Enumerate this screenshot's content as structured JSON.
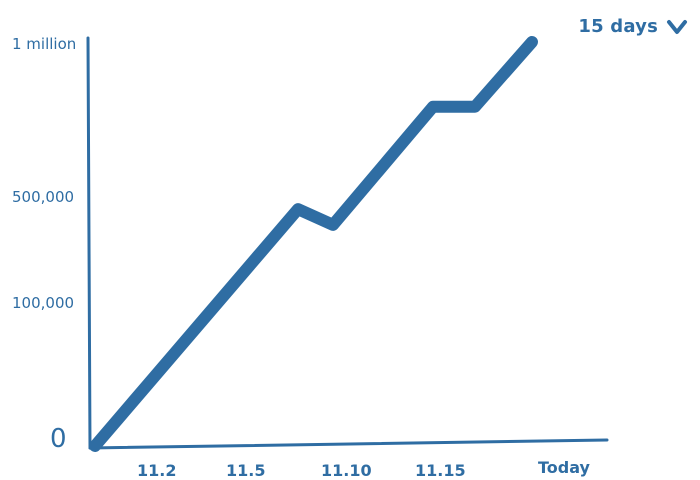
{
  "range_selector": {
    "label": "15 days",
    "icon": "chevron-down-icon"
  },
  "colors": {
    "accent": "#2f6da3",
    "line": "#2f6da3",
    "axis": "#2f6da3",
    "text": "#2f6da3"
  },
  "chart_data": {
    "type": "line",
    "title": "",
    "xlabel": "",
    "ylabel": "",
    "x_ticks": [
      "11.2",
      "11.5",
      "11.10",
      "11.15",
      "Today"
    ],
    "y_ticks": [
      "0",
      "100,000",
      "500,000",
      "1 million"
    ],
    "y_scale": "irregular (labels are unevenly spaced)",
    "series": [
      {
        "values": [
          {
            "x": "start",
            "y": 0
          },
          {
            "x": "11.7",
            "y": 450000
          },
          {
            "x": "11.8",
            "y": 390000
          },
          {
            "x": "11.12",
            "y": 790000
          },
          {
            "x": "11.13",
            "y": 790000
          },
          {
            "x": "Today",
            "y": 1000000
          }
        ]
      }
    ],
    "grid": false,
    "legend": "none"
  }
}
